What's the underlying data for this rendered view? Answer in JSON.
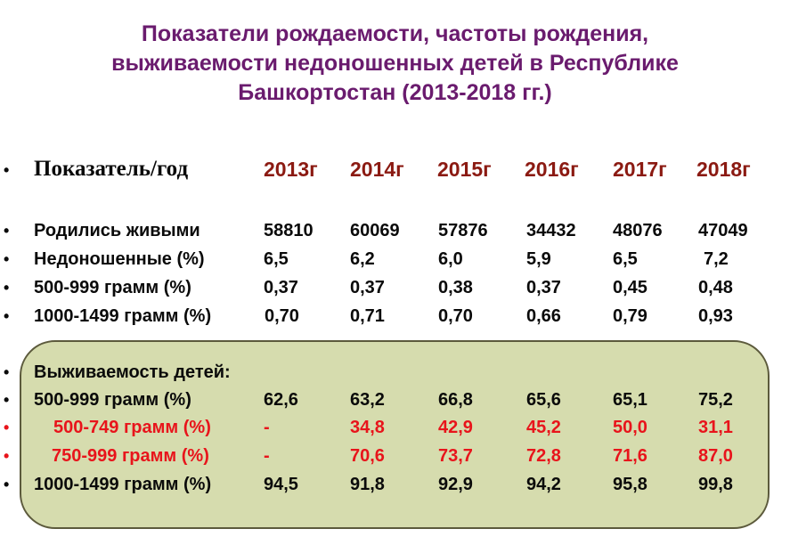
{
  "title": {
    "line1": "Показатели рождаемости, частоты рождения,",
    "line2": "выживаемости недоношенных детей в Республике",
    "line3": "Башкортостан (2013-2018 гг.)"
  },
  "bullet": "•",
  "header": {
    "label": "Показатель/год",
    "years": [
      "2013г",
      "2014г",
      "2015г",
      "2016г",
      "2017г",
      "2018г"
    ]
  },
  "rows": [
    {
      "label": "Родились живыми",
      "values": [
        "58810",
        "60069",
        "57876",
        "34432",
        "48076",
        "47049"
      ]
    },
    {
      "label": "Недоношенные (%)",
      "values": [
        "6,5",
        "6,2",
        "6,0",
        "5,9",
        "6,5",
        "7,2"
      ]
    },
    {
      "label": "500-999 грамм (%)",
      "values": [
        "0,37",
        "0,37",
        "0,38",
        "0,37",
        "0,45",
        "0,48"
      ]
    },
    {
      "label": "1000-1499 грамм (%)",
      "values": [
        "0,70",
        "0,71",
        "0,70",
        "0,66",
        "0,79",
        "0,93"
      ]
    }
  ],
  "survival": {
    "heading": "Выживаемость детей:",
    "rows": [
      {
        "label": "500-999 грамм (%)",
        "values": [
          "62,6",
          "63,2",
          "66,8",
          "65,6",
          "65,1",
          "75,2"
        ]
      },
      {
        "label": "500-749 грамм (%)",
        "values": [
          "-",
          "34,8",
          "42,9",
          "45,2",
          "50,0",
          "31,1"
        ]
      },
      {
        "label": "750-999 грамм (%)",
        "values": [
          "-",
          "70,6",
          "73,7",
          "72,8",
          "71,6",
          "87,0"
        ]
      },
      {
        "label": "1000-1499 грамм (%)",
        "values": [
          "94,5",
          "91,8",
          "92,9",
          "94,2",
          "95,8",
          "99,8"
        ]
      }
    ]
  },
  "colors": {
    "title": "#6a1b6e",
    "year_header": "#8b1a12",
    "highlight_rows": "#e8141b",
    "box_fill": "#d6dcae",
    "box_border": "#5c5a3c"
  }
}
